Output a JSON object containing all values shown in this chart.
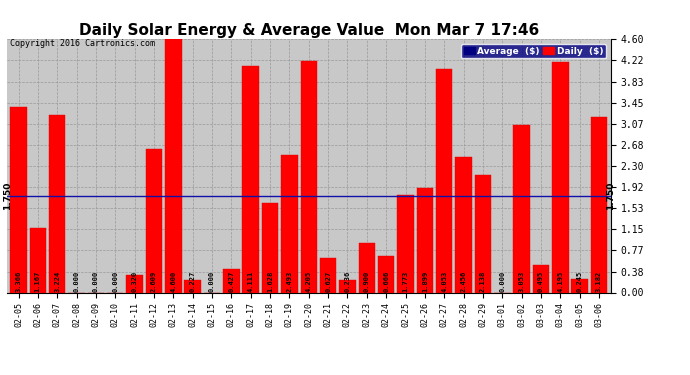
{
  "title": "Daily Solar Energy & Average Value  Mon Mar 7 17:46",
  "copyright": "Copyright 2016 Cartronics.com",
  "categories": [
    "02-05",
    "02-06",
    "02-07",
    "02-08",
    "02-09",
    "02-10",
    "02-11",
    "02-12",
    "02-13",
    "02-14",
    "02-15",
    "02-16",
    "02-17",
    "02-18",
    "02-19",
    "02-20",
    "02-21",
    "02-22",
    "02-23",
    "02-24",
    "02-25",
    "02-26",
    "02-27",
    "02-28",
    "02-29",
    "03-01",
    "03-02",
    "03-03",
    "03-04",
    "03-05",
    "03-06"
  ],
  "values": [
    3.366,
    1.167,
    3.224,
    0.0,
    0.0,
    0.0,
    0.32,
    2.609,
    4.6,
    0.227,
    0.0,
    0.427,
    4.111,
    1.628,
    2.493,
    4.205,
    0.627,
    0.236,
    0.9,
    0.666,
    1.773,
    1.899,
    4.053,
    2.456,
    2.138,
    0.0,
    3.053,
    0.495,
    4.195,
    0.245,
    3.182
  ],
  "average_value": 1.75,
  "ylim": [
    0.0,
    4.6
  ],
  "yticks": [
    0.0,
    0.38,
    0.77,
    1.15,
    1.53,
    1.92,
    2.3,
    2.68,
    3.07,
    3.45,
    3.83,
    4.22,
    4.6
  ],
  "bar_color": "#FF0000",
  "bar_edge_color": "#DD0000",
  "avg_line_color": "#1111AA",
  "grid_color": "#999999",
  "background_color": "#C8C8C8",
  "title_fontsize": 11,
  "legend_avg_bg": "#000080",
  "legend_bar_color": "#FF0000",
  "legend_avg_label": "Average  ($)",
  "legend_daily_label": "Daily  ($)",
  "avg_label": "1.750"
}
